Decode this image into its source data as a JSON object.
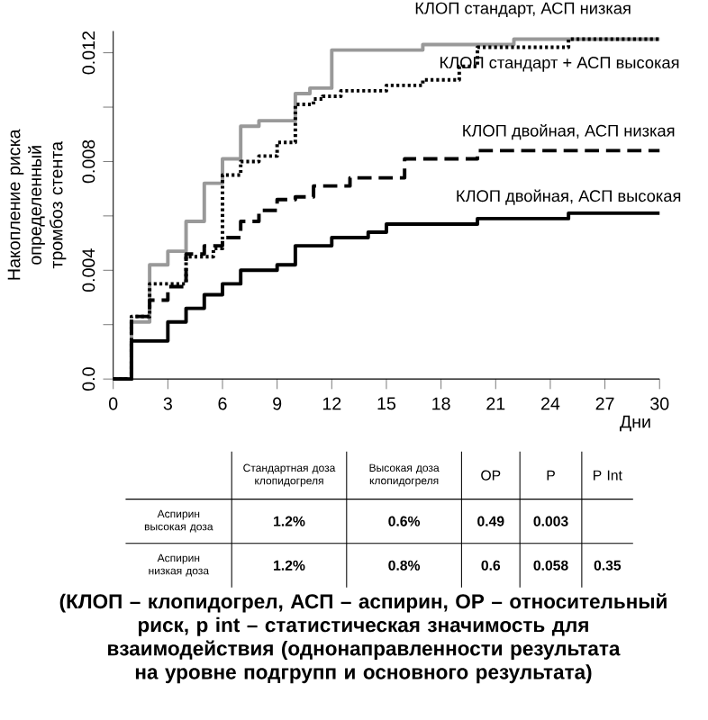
{
  "chart_data": [
    {
      "type": "step",
      "xlabel": "Дни",
      "ylabel": "Накопление риска определенный тромбоз стента",
      "xlim": [
        0,
        30
      ],
      "ylim": [
        0,
        0.0128
      ],
      "xticks": [
        0,
        3,
        6,
        9,
        12,
        15,
        18,
        21,
        24,
        27,
        30
      ],
      "yticks": [
        {
          "value": 0,
          "label": "0.0"
        },
        {
          "value": 0.002,
          "label": null
        },
        {
          "value": 0.004,
          "label": "0.004"
        },
        {
          "value": 0.006,
          "label": null
        },
        {
          "value": 0.008,
          "label": "0.008"
        },
        {
          "value": 0.01,
          "label": null
        },
        {
          "value": 0.012,
          "label": "0.012"
        }
      ],
      "grid": false,
      "legend": false,
      "marker": "none",
      "series": [
        {
          "name": "КЛОП стандарт, АСП низкая",
          "color": "#999999",
          "line_style": "solid",
          "x": [
            0,
            1,
            2,
            3,
            4,
            5,
            6,
            7,
            8,
            10,
            10.8,
            12,
            17,
            22,
            30
          ],
          "values": [
            0,
            0.0021,
            0.0042,
            0.0047,
            0.0058,
            0.0072,
            0.0081,
            0.0093,
            0.0095,
            0.0105,
            0.0107,
            0.0121,
            0.0123,
            0.0125,
            0.0125
          ]
        },
        {
          "name": "КЛОП стандарт + АСП высокая",
          "color": "#000000",
          "line_style": "dotted",
          "x": [
            0,
            1,
            2,
            4,
            5.5,
            6,
            7,
            8,
            9,
            10,
            11,
            11.5,
            12.5,
            15,
            17,
            19,
            20,
            25,
            30
          ],
          "values": [
            0,
            0.0023,
            0.0035,
            0.0045,
            0.0048,
            0.0075,
            0.008,
            0.0082,
            0.0087,
            0.0101,
            0.0103,
            0.0104,
            0.0106,
            0.0108,
            0.011,
            0.0115,
            0.0122,
            0.0125,
            0.0125
          ]
        },
        {
          "name": "КЛОП двойная, АСП низкая",
          "color": "#000000",
          "line_style": "dashed",
          "x": [
            0,
            1,
            2,
            3,
            4,
            5,
            6,
            7,
            8,
            9,
            10,
            11,
            13,
            16,
            20,
            30
          ],
          "values": [
            0,
            0.0023,
            0.0029,
            0.0034,
            0.0046,
            0.0049,
            0.0052,
            0.0058,
            0.0062,
            0.0066,
            0.0067,
            0.0071,
            0.0074,
            0.0081,
            0.0084,
            0.0084
          ]
        },
        {
          "name": "КЛОП двойная, АСП высокая",
          "color": "#000000",
          "line_style": "solid",
          "x": [
            0,
            1,
            3,
            4,
            5,
            6,
            7,
            9,
            10,
            12,
            14,
            15,
            20,
            25,
            30
          ],
          "values": [
            0,
            0.0014,
            0.0021,
            0.0026,
            0.0031,
            0.0035,
            0.004,
            0.0042,
            0.0049,
            0.0052,
            0.0054,
            0.0057,
            0.0059,
            0.0061,
            0.0061
          ]
        }
      ],
      "annotations": [
        "(КЛОП – клопидогрел, АСП – аспирин, ОР – относительный риск, p int – статистическая значимость для взаимодействия (однонаправленности результата на уровне подгрупп и основного результата)"
      ]
    },
    {
      "type": "other",
      "categories": [
        "Стандартная доза клопидогреля",
        "Высокая доза клопидогреля",
        "ОР",
        "P",
        "P Int"
      ],
      "y_categories": [
        "Аспирин высокая доза",
        "Аспирин низкая доза"
      ],
      "cell_labels": [
        [
          "1.2%",
          "0.6%",
          "0.49",
          "0.003",
          null
        ],
        [
          "1.2%",
          "0.8%",
          "0.6",
          "0.058",
          "0.35"
        ]
      ]
    }
  ]
}
